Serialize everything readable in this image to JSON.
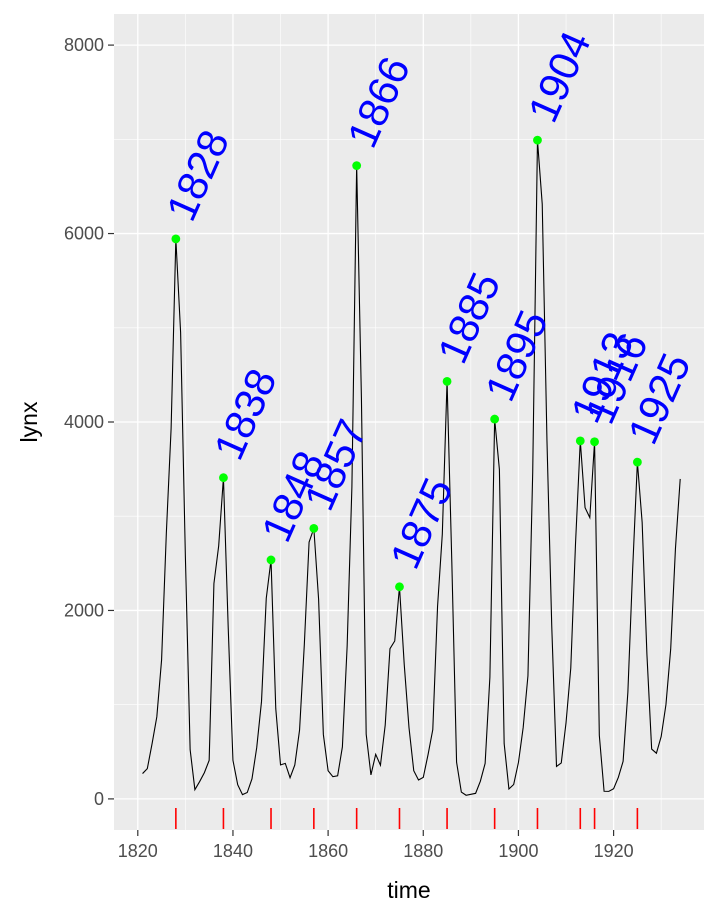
{
  "chart_data": {
    "type": "line",
    "title": "",
    "xlabel": "time",
    "ylabel": "lynx",
    "xlim": [
      1815,
      1939
    ],
    "ylim": [
      -330,
      8330
    ],
    "x_ticks": [
      1820,
      1840,
      1860,
      1880,
      1900,
      1920
    ],
    "y_ticks": [
      0,
      2000,
      4000,
      6000,
      8000
    ],
    "x_tick_labels": [
      "1820",
      "1840",
      "1860",
      "1880",
      "1900",
      "1920"
    ],
    "y_tick_labels": [
      "0",
      "2000",
      "4000",
      "6000",
      "8000"
    ],
    "grid": true,
    "legend": "none",
    "colors": {
      "panel": "#ebebeb",
      "grid": "#ffffff",
      "line": "#000000",
      "peak_point": "#00ff00",
      "peak_label": "#0000ff",
      "rug": "#ff0000"
    },
    "series": [
      {
        "x_start": 1821,
        "values": [
          269,
          321,
          585,
          871,
          1475,
          2821,
          3928,
          5943,
          4950,
          2577,
          523,
          98,
          184,
          279,
          409,
          2285,
          2685,
          3409,
          1824,
          409,
          151,
          45,
          68,
          213,
          546,
          1033,
          2129,
          2536,
          957,
          361,
          377,
          225,
          360,
          731,
          1638,
          2725,
          2871,
          2119,
          684,
          299,
          236,
          245,
          552,
          1623,
          3311,
          6721,
          4254,
          687,
          255,
          473,
          358,
          784,
          1594,
          1676,
          2251,
          1426,
          756,
          299,
          201,
          229,
          469,
          736,
          2042,
          2811,
          4431,
          2511,
          389,
          73,
          39,
          49,
          59,
          188,
          377,
          1292,
          4031,
          3495,
          587,
          105,
          153,
          387,
          758,
          1307,
          3465,
          6991,
          6313,
          3794,
          1836,
          345,
          382,
          808,
          1388,
          2713,
          3800,
          3091,
          2985,
          3790,
          674,
          81,
          80,
          108,
          229,
          399,
          1132,
          2432,
          3574,
          2935,
          1537,
          529,
          485,
          662,
          1000,
          1590,
          2657,
          3396
        ]
      }
    ],
    "peaks": [
      {
        "year": 1828,
        "value": 5943,
        "label": "1828"
      },
      {
        "year": 1838,
        "value": 3409,
        "label": "1838"
      },
      {
        "year": 1848,
        "value": 2536,
        "label": "1848"
      },
      {
        "year": 1857,
        "value": 2871,
        "label": "1857"
      },
      {
        "year": 1866,
        "value": 6721,
        "label": "1866"
      },
      {
        "year": 1875,
        "value": 2251,
        "label": "1875"
      },
      {
        "year": 1885,
        "value": 4431,
        "label": "1885"
      },
      {
        "year": 1895,
        "value": 4031,
        "label": "1895"
      },
      {
        "year": 1904,
        "value": 6991,
        "label": "1904"
      },
      {
        "year": 1913,
        "value": 3800,
        "label": "1913"
      },
      {
        "year": 1916,
        "value": 3790,
        "label": "1916"
      },
      {
        "year": 1925,
        "value": 3574,
        "label": "1925"
      }
    ]
  }
}
